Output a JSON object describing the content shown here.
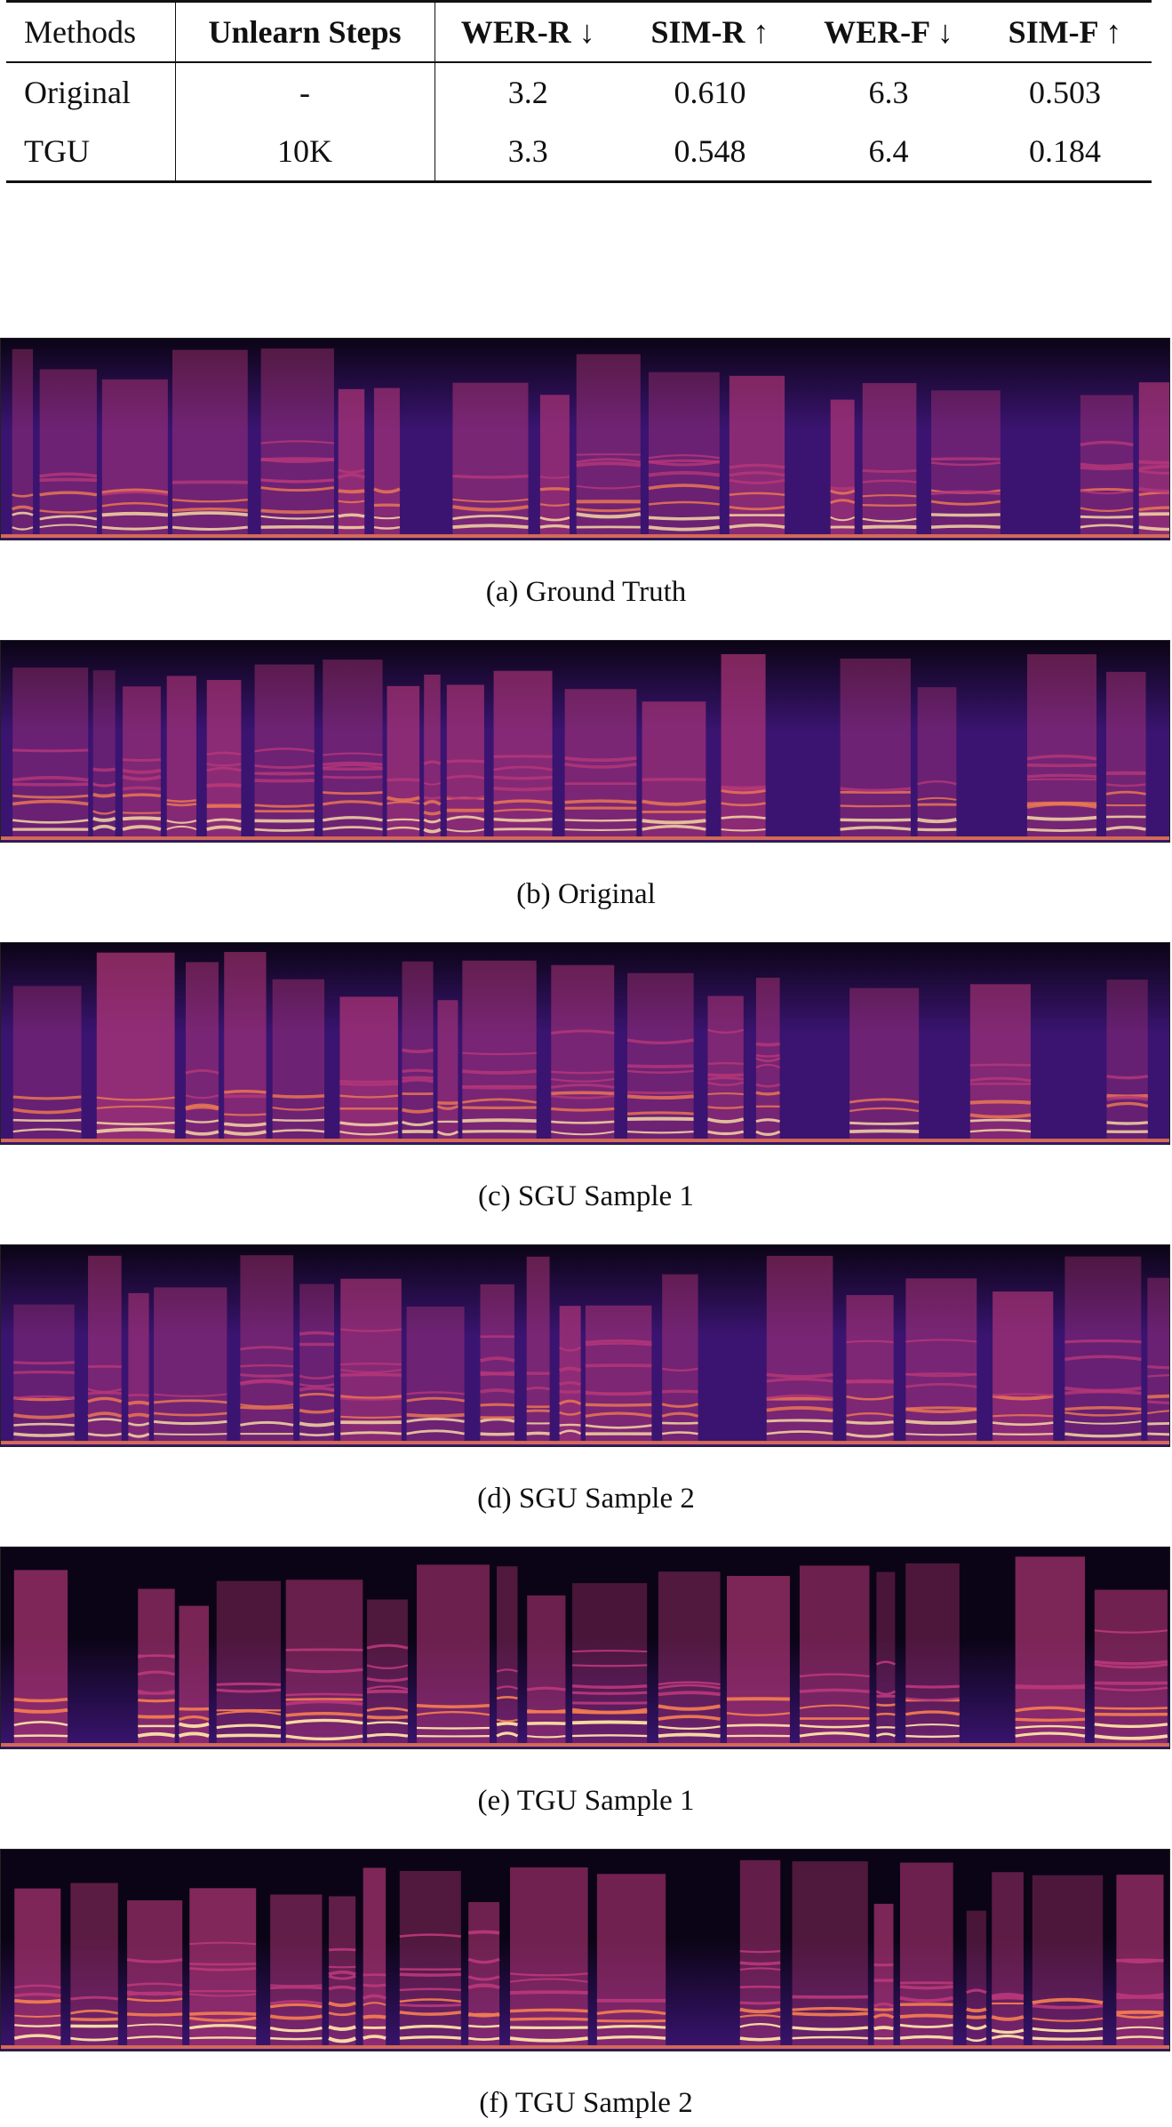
{
  "table": {
    "headers": [
      "Methods",
      "Unlearn Steps",
      "WER-R ↓",
      "SIM-R ↑",
      "WER-F ↓",
      "SIM-F ↑"
    ],
    "rows": [
      [
        "Original",
        "-",
        "3.2",
        "0.610",
        "6.3",
        "0.503"
      ],
      [
        "TGU",
        "10K",
        "3.3",
        "0.548",
        "6.4",
        "0.184"
      ]
    ]
  },
  "figures": [
    {
      "caption": "(a) Ground Truth",
      "colormap": "magma",
      "contrast": "medium"
    },
    {
      "caption": "(b) Original",
      "colormap": "magma",
      "contrast": "medium"
    },
    {
      "caption": "(c) SGU Sample 1",
      "colormap": "magma",
      "contrast": "medium"
    },
    {
      "caption": "(d) SGU Sample 2",
      "colormap": "magma",
      "contrast": "medium"
    },
    {
      "caption": "(e) TGU Sample 1",
      "colormap": "magma",
      "contrast": "high"
    },
    {
      "caption": "(f) TGU Sample 2",
      "colormap": "magma",
      "contrast": "high"
    }
  ],
  "colors": {
    "spectrogram_dark": "#0b0416",
    "spectrogram_bg": "#3a1470",
    "harmonic_bright": "#fde3a6",
    "harmonic_mid": "#f07a52",
    "harmonic_low": "#b73779"
  }
}
